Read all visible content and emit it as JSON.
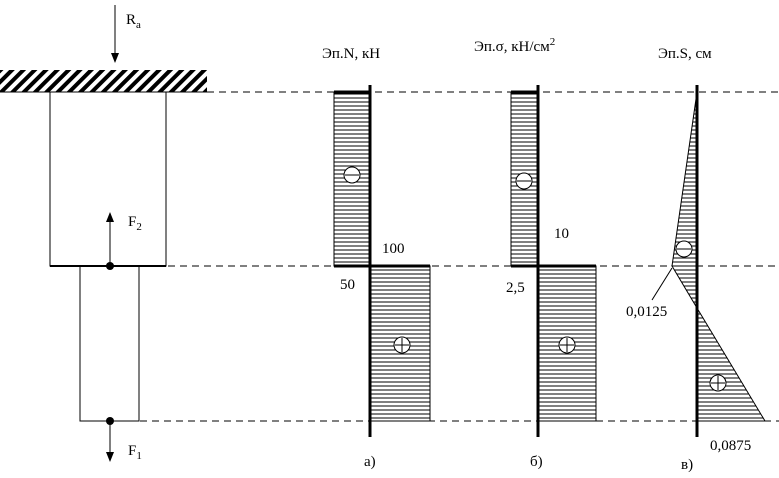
{
  "forces": {
    "ra": {
      "main": "R",
      "sub": "a"
    },
    "f2": {
      "main": "F",
      "sub": "2"
    },
    "f1": {
      "main": "F",
      "sub": "1"
    }
  },
  "diagrams": [
    {
      "title": {
        "text": "Эп.N, кН"
      },
      "labels": [
        "100",
        "50"
      ],
      "caption": "а)"
    },
    {
      "title": {
        "text": "Эп.σ, кН/см",
        "sup": "2"
      },
      "labels": [
        "10",
        "2,5"
      ],
      "caption": "б)"
    },
    {
      "title": {
        "text": "Эп.S, см"
      },
      "labels": [
        "0,0125",
        "0,0875"
      ],
      "caption": "в)"
    }
  ]
}
